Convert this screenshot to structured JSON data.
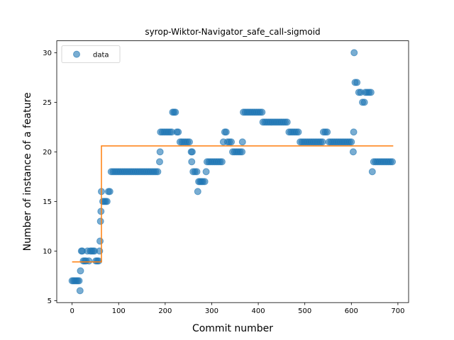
{
  "chart_data": {
    "type": "scatter",
    "title": "syrop-Wiktor-Navigator_safe_call-sigmoid",
    "xlabel": "Commit number",
    "ylabel": "Number of instance of a feature",
    "xlim": [
      -33,
      723
    ],
    "ylim": [
      4.8,
      31.2
    ],
    "xticks": [
      0,
      100,
      200,
      300,
      400,
      500,
      600,
      700
    ],
    "yticks": [
      5,
      10,
      15,
      20,
      25,
      30
    ],
    "grid": false,
    "legend": {
      "placement": "top-left",
      "entries": [
        "data"
      ]
    },
    "colors": {
      "data": "#1f77b4",
      "fit": "#ff7f0e"
    },
    "series": [
      {
        "name": "data",
        "kind": "scatter",
        "points": [
          [
            0,
            7
          ],
          [
            3,
            7
          ],
          [
            6,
            7
          ],
          [
            9,
            7
          ],
          [
            12,
            7
          ],
          [
            15,
            7
          ],
          [
            17,
            6
          ],
          [
            18,
            8
          ],
          [
            20,
            10
          ],
          [
            22,
            10
          ],
          [
            24,
            9
          ],
          [
            27,
            9
          ],
          [
            30,
            9
          ],
          [
            33,
            10
          ],
          [
            36,
            9
          ],
          [
            39,
            10
          ],
          [
            42,
            10
          ],
          [
            45,
            10
          ],
          [
            48,
            10
          ],
          [
            51,
            9
          ],
          [
            54,
            9
          ],
          [
            57,
            9
          ],
          [
            59,
            10
          ],
          [
            60,
            11
          ],
          [
            61,
            13
          ],
          [
            62,
            14
          ],
          [
            63,
            16
          ],
          [
            66,
            15
          ],
          [
            69,
            15
          ],
          [
            72,
            15
          ],
          [
            75,
            15
          ],
          [
            78,
            16
          ],
          [
            81,
            16
          ],
          [
            84,
            18
          ],
          [
            88,
            18
          ],
          [
            92,
            18
          ],
          [
            96,
            18
          ],
          [
            100,
            18
          ],
          [
            104,
            18
          ],
          [
            108,
            18
          ],
          [
            112,
            18
          ],
          [
            116,
            18
          ],
          [
            120,
            18
          ],
          [
            124,
            18
          ],
          [
            128,
            18
          ],
          [
            132,
            18
          ],
          [
            136,
            18
          ],
          [
            140,
            18
          ],
          [
            144,
            18
          ],
          [
            148,
            18
          ],
          [
            152,
            18
          ],
          [
            156,
            18
          ],
          [
            160,
            18
          ],
          [
            164,
            18
          ],
          [
            168,
            18
          ],
          [
            172,
            18
          ],
          [
            176,
            18
          ],
          [
            180,
            18
          ],
          [
            184,
            18
          ],
          [
            188,
            19
          ],
          [
            189,
            20
          ],
          [
            190,
            22
          ],
          [
            194,
            22
          ],
          [
            198,
            22
          ],
          [
            202,
            22
          ],
          [
            206,
            22
          ],
          [
            210,
            22
          ],
          [
            214,
            22
          ],
          [
            216,
            24
          ],
          [
            219,
            24
          ],
          [
            222,
            24
          ],
          [
            225,
            22
          ],
          [
            228,
            22
          ],
          [
            232,
            21
          ],
          [
            236,
            21
          ],
          [
            240,
            21
          ],
          [
            244,
            21
          ],
          [
            248,
            21
          ],
          [
            252,
            21
          ],
          [
            256,
            20
          ],
          [
            257,
            19
          ],
          [
            258,
            20
          ],
          [
            260,
            18
          ],
          [
            264,
            18
          ],
          [
            268,
            18
          ],
          [
            270,
            16
          ],
          [
            272,
            17
          ],
          [
            275,
            17
          ],
          [
            278,
            17
          ],
          [
            281,
            17
          ],
          [
            285,
            17
          ],
          [
            288,
            18
          ],
          [
            290,
            19
          ],
          [
            294,
            19
          ],
          [
            298,
            19
          ],
          [
            302,
            19
          ],
          [
            306,
            19
          ],
          [
            310,
            19
          ],
          [
            314,
            19
          ],
          [
            318,
            19
          ],
          [
            322,
            19
          ],
          [
            325,
            21
          ],
          [
            328,
            22
          ],
          [
            331,
            22
          ],
          [
            334,
            21
          ],
          [
            338,
            21
          ],
          [
            342,
            21
          ],
          [
            345,
            20
          ],
          [
            349,
            20
          ],
          [
            353,
            20
          ],
          [
            357,
            20
          ],
          [
            361,
            20
          ],
          [
            365,
            20
          ],
          [
            366,
            21
          ],
          [
            368,
            24
          ],
          [
            372,
            24
          ],
          [
            376,
            24
          ],
          [
            380,
            24
          ],
          [
            384,
            24
          ],
          [
            388,
            24
          ],
          [
            392,
            24
          ],
          [
            396,
            24
          ],
          [
            400,
            24
          ],
          [
            404,
            24
          ],
          [
            408,
            24
          ],
          [
            410,
            23
          ],
          [
            414,
            23
          ],
          [
            418,
            23
          ],
          [
            422,
            23
          ],
          [
            426,
            23
          ],
          [
            430,
            23
          ],
          [
            434,
            23
          ],
          [
            438,
            23
          ],
          [
            442,
            23
          ],
          [
            446,
            23
          ],
          [
            450,
            23
          ],
          [
            454,
            23
          ],
          [
            458,
            23
          ],
          [
            462,
            23
          ],
          [
            466,
            22
          ],
          [
            470,
            22
          ],
          [
            474,
            22
          ],
          [
            478,
            22
          ],
          [
            482,
            22
          ],
          [
            486,
            22
          ],
          [
            490,
            21
          ],
          [
            494,
            21
          ],
          [
            498,
            21
          ],
          [
            502,
            21
          ],
          [
            506,
            21
          ],
          [
            510,
            21
          ],
          [
            514,
            21
          ],
          [
            518,
            21
          ],
          [
            522,
            21
          ],
          [
            526,
            21
          ],
          [
            530,
            21
          ],
          [
            534,
            21
          ],
          [
            538,
            21
          ],
          [
            540,
            22
          ],
          [
            544,
            22
          ],
          [
            548,
            22
          ],
          [
            552,
            21
          ],
          [
            556,
            21
          ],
          [
            560,
            21
          ],
          [
            564,
            21
          ],
          [
            568,
            21
          ],
          [
            572,
            21
          ],
          [
            576,
            21
          ],
          [
            580,
            21
          ],
          [
            584,
            21
          ],
          [
            588,
            21
          ],
          [
            592,
            21
          ],
          [
            596,
            21
          ],
          [
            600,
            21
          ],
          [
            604,
            20
          ],
          [
            605,
            22
          ],
          [
            606,
            30
          ],
          [
            608,
            27
          ],
          [
            612,
            27
          ],
          [
            616,
            26
          ],
          [
            620,
            26
          ],
          [
            624,
            25
          ],
          [
            628,
            25
          ],
          [
            630,
            26
          ],
          [
            634,
            26
          ],
          [
            638,
            26
          ],
          [
            642,
            26
          ],
          [
            645,
            18
          ],
          [
            648,
            19
          ],
          [
            652,
            19
          ],
          [
            656,
            19
          ],
          [
            660,
            19
          ],
          [
            664,
            19
          ],
          [
            668,
            19
          ],
          [
            672,
            19
          ],
          [
            676,
            19
          ],
          [
            680,
            19
          ],
          [
            684,
            19
          ],
          [
            688,
            19
          ]
        ]
      },
      {
        "name": "",
        "kind": "step-line",
        "points": [
          [
            0,
            8.9
          ],
          [
            63,
            8.9
          ],
          [
            63,
            20.6
          ],
          [
            690,
            20.6
          ]
        ]
      }
    ]
  }
}
